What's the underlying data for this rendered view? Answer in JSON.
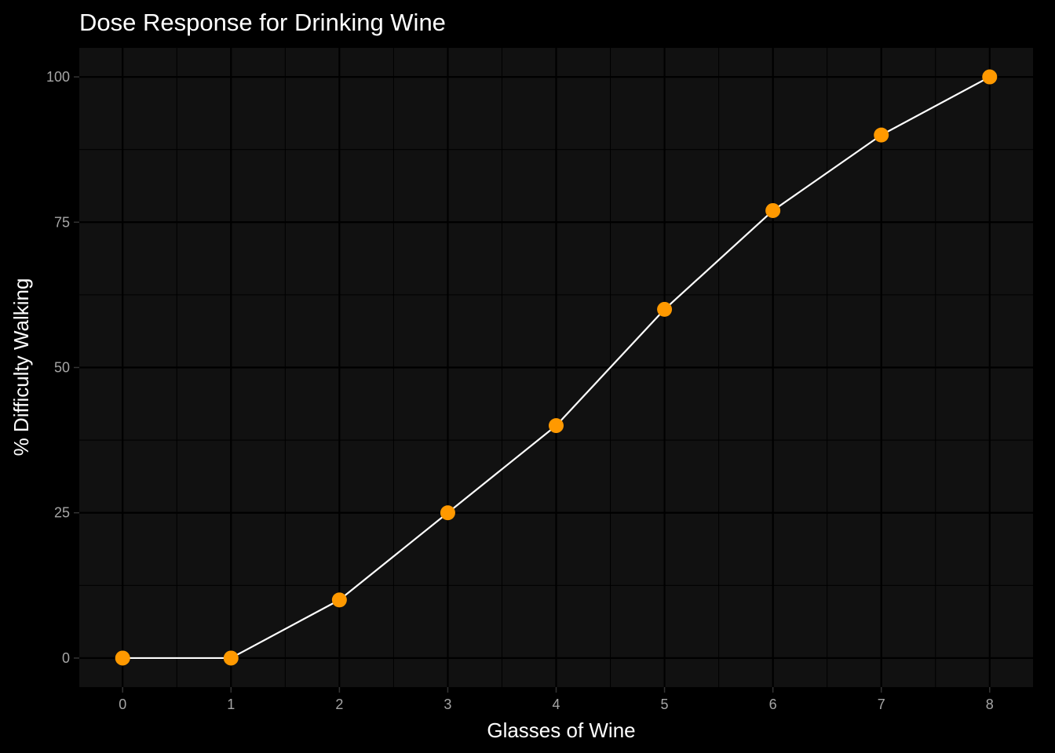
{
  "chart_data": {
    "type": "line",
    "title": "Dose Response for Drinking Wine",
    "xlabel": "Glasses of Wine",
    "ylabel": "% Difficulty Walking",
    "x": [
      0,
      1,
      2,
      3,
      4,
      5,
      6,
      7,
      8
    ],
    "series": [
      {
        "values": [
          0,
          0,
          10,
          25,
          40,
          60,
          77,
          90,
          100
        ],
        "line_color": "#ffffff",
        "point_color": "#ff9900"
      }
    ],
    "xlim": [
      -0.4,
      8.4
    ],
    "ylim": [
      -5,
      105
    ],
    "x_ticks": [
      0,
      1,
      2,
      3,
      4,
      5,
      6,
      7,
      8
    ],
    "y_ticks": [
      0,
      25,
      50,
      75,
      100
    ],
    "grid": true,
    "legend": "none",
    "colors": {
      "background": "#000000",
      "panel": "#111111",
      "grid": "#000000",
      "text": "#ffffff",
      "tick_text": "#a6a6a6"
    }
  }
}
